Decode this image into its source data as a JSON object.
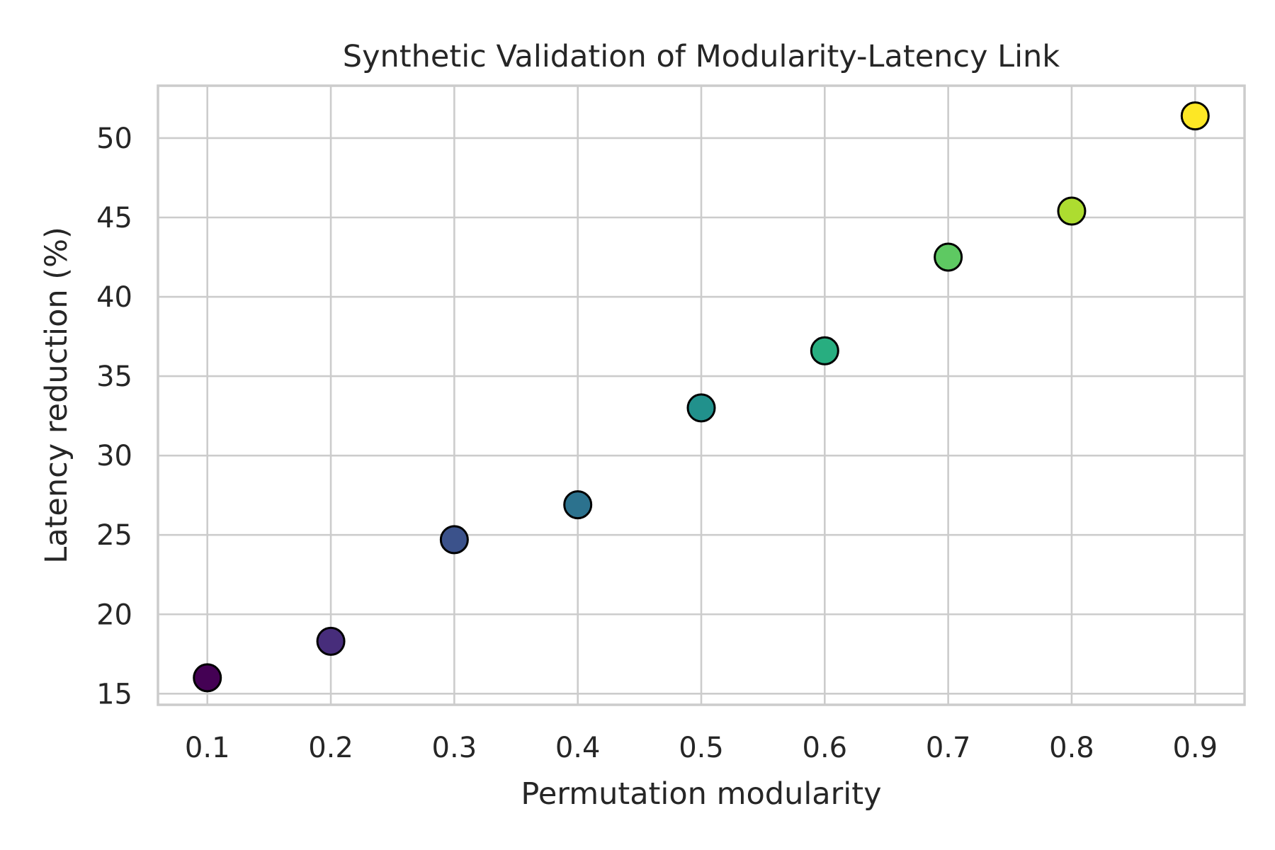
{
  "chart_data": {
    "type": "scatter",
    "title": "Synthetic Validation of Modularity-Latency Link",
    "xlabel": "Permutation modularity",
    "ylabel": "Latency reduction (%)",
    "xlim": [
      0.06,
      0.94
    ],
    "ylim": [
      14.3,
      53.3
    ],
    "xticks": [
      0.1,
      0.2,
      0.3,
      0.4,
      0.5,
      0.6,
      0.7,
      0.8,
      0.9
    ],
    "yticks": [
      15,
      20,
      25,
      30,
      35,
      40,
      45,
      50
    ],
    "grid": true,
    "colormap": "viridis",
    "marker_edge_color": "#000000",
    "points": [
      {
        "x": 0.1,
        "y": 16.0,
        "color": "#440154"
      },
      {
        "x": 0.2,
        "y": 18.3,
        "color": "#472d7b"
      },
      {
        "x": 0.3,
        "y": 24.7,
        "color": "#3b528b"
      },
      {
        "x": 0.4,
        "y": 26.9,
        "color": "#2c728e"
      },
      {
        "x": 0.5,
        "y": 33.0,
        "color": "#21918c"
      },
      {
        "x": 0.6,
        "y": 36.6,
        "color": "#28ae80"
      },
      {
        "x": 0.7,
        "y": 42.5,
        "color": "#5ec962"
      },
      {
        "x": 0.8,
        "y": 45.4,
        "color": "#addc30"
      },
      {
        "x": 0.9,
        "y": 51.4,
        "color": "#fde725"
      }
    ]
  }
}
